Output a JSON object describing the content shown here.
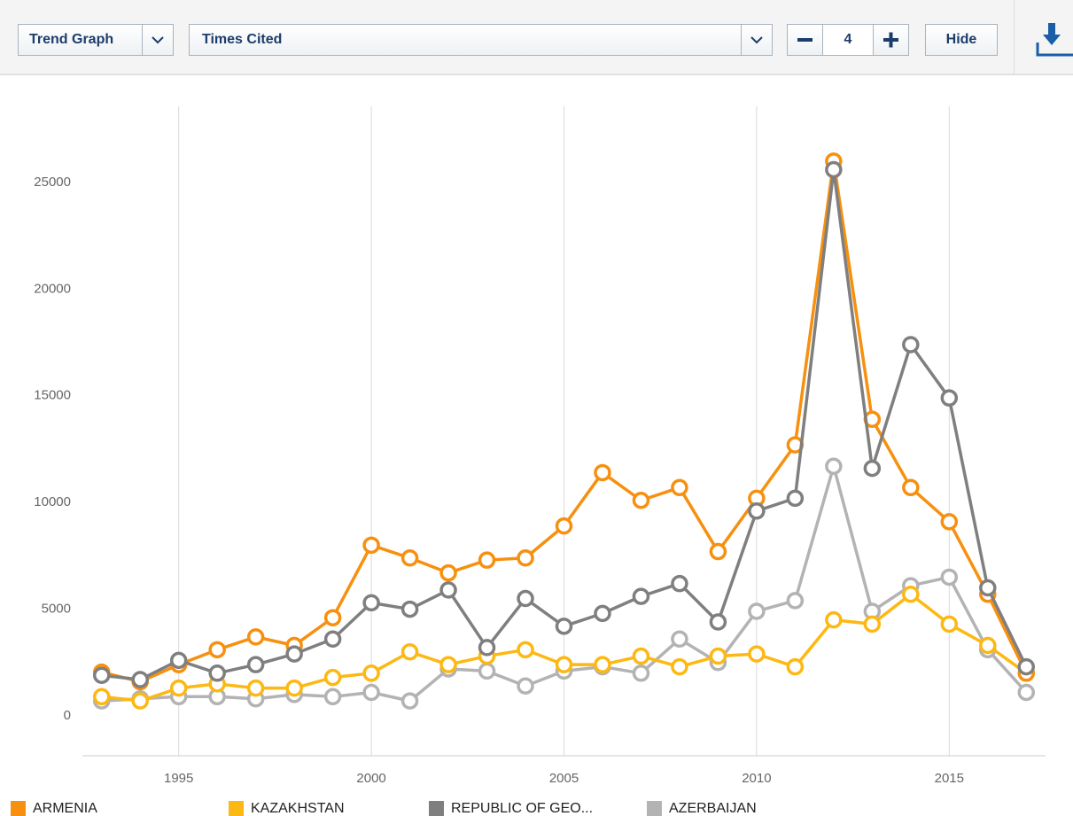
{
  "toolbar": {
    "view": "Trend Graph",
    "metric": "Times Cited",
    "count": 4,
    "hide": "Hide"
  },
  "chart_data": {
    "type": "line",
    "x": [
      1993,
      1994,
      1995,
      1996,
      1997,
      1998,
      1999,
      2000,
      2001,
      2002,
      2003,
      2004,
      2005,
      2006,
      2007,
      2008,
      2009,
      2010,
      2011,
      2012,
      2013,
      2014,
      2015,
      2016,
      2017
    ],
    "series": [
      {
        "name": "ARMENIA",
        "color": "#f7900f",
        "values": [
          2050,
          1600,
          2400,
          3100,
          3700,
          3300,
          4600,
          8000,
          7400,
          6700,
          7300,
          7400,
          8900,
          11400,
          10100,
          10700,
          7700,
          10200,
          12700,
          26000,
          13900,
          10700,
          9100,
          5700,
          2000
        ]
      },
      {
        "name": "KAZAKHSTAN",
        "color": "#fdb813",
        "values": [
          900,
          700,
          1300,
          1500,
          1300,
          1300,
          1800,
          2000,
          3000,
          2400,
          2800,
          3100,
          2400,
          2400,
          2800,
          2300,
          2800,
          2900,
          2300,
          4500,
          4300,
          5700,
          4300,
          3300,
          2000
        ]
      },
      {
        "name": "REPUBLIC OF GEO...",
        "color": "#7f7f7f",
        "values": [
          1900,
          1700,
          2600,
          2000,
          2400,
          2900,
          3600,
          5300,
          5000,
          5900,
          3200,
          5500,
          4200,
          4800,
          5600,
          6200,
          4400,
          9600,
          10200,
          25600,
          11600,
          17400,
          14900,
          6000,
          2300
        ]
      },
      {
        "name": "AZERBAIJAN",
        "color": "#b3b3b3",
        "values": [
          700,
          800,
          900,
          900,
          800,
          1000,
          900,
          1100,
          700,
          2200,
          2100,
          1400,
          2100,
          2300,
          2000,
          3600,
          2500,
          4900,
          5400,
          11700,
          4900,
          6100,
          6500,
          3100,
          1100
        ]
      }
    ],
    "xlim": [
      1992.5,
      2017.5
    ],
    "xticks": [
      1995,
      2000,
      2005,
      2010,
      2015
    ],
    "ylim": [
      -1870,
      28570
    ],
    "yticks": [
      0,
      5000,
      10000,
      15000,
      20000,
      25000
    ],
    "grid": "x"
  }
}
